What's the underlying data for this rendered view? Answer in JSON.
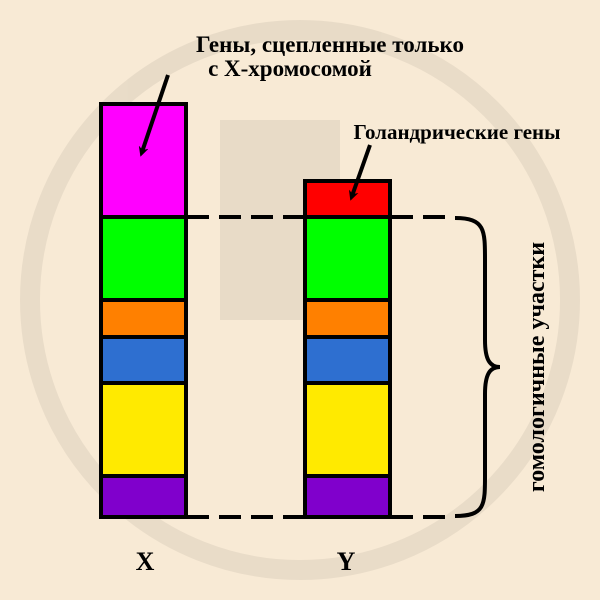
{
  "labels": {
    "x_linked_line1": "Гены, сцепленные только",
    "x_linked_line2": "с Х-хромосомой",
    "holandric": "Голандрические гены",
    "homologous": "гомологичные участки",
    "x_chromosome": "X",
    "y_chromosome": "Y"
  },
  "colors": {
    "background": "#f8ead5",
    "x_only": "#ff00ff",
    "y_only": "#ff0000",
    "homologous_segments": [
      "#00ff00",
      "#ff8000",
      "#2e6fd0",
      "#ffea00",
      "#8000cc"
    ]
  }
}
